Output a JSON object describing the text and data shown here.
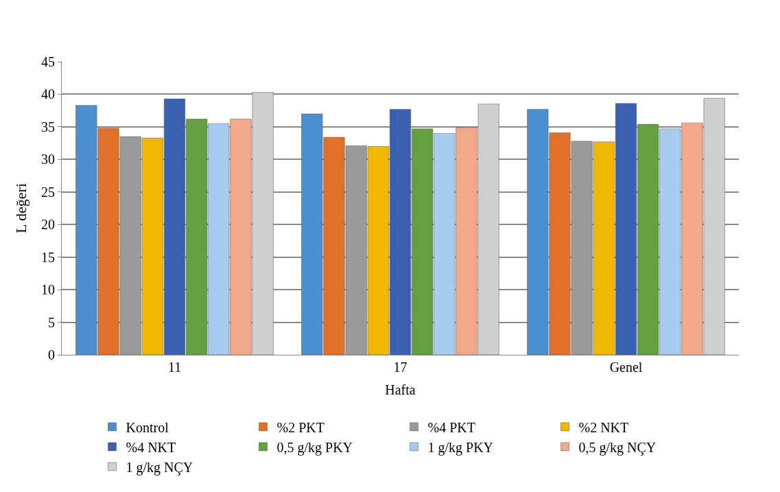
{
  "chart_data": {
    "type": "bar",
    "xlabel": "Hafta",
    "ylabel": "L değeri",
    "categories": [
      "11",
      "17",
      "Genel"
    ],
    "ylim": [
      0,
      45
    ],
    "yticks": [
      0,
      5,
      10,
      15,
      20,
      25,
      30,
      35,
      40,
      45
    ],
    "grid": "y",
    "legend": "bottom",
    "series": [
      {
        "name": "Kontrol",
        "color": "#4a90d0",
        "values": [
          38.3,
          37.0,
          37.7
        ]
      },
      {
        "name": "%2 PKT",
        "color": "#e0702a",
        "values": [
          34.8,
          33.4,
          34.1
        ]
      },
      {
        "name": "%4 PKT",
        "color": "#9a9a9a",
        "values": [
          33.5,
          32.1,
          32.8
        ]
      },
      {
        "name": "%2 NKT",
        "color": "#f0b800",
        "values": [
          33.3,
          32.0,
          32.7
        ]
      },
      {
        "name": "%4 NKT",
        "color": "#3a62b0",
        "values": [
          39.3,
          37.7,
          38.6
        ]
      },
      {
        "name": "0,5 g/kg PKY",
        "color": "#62a040",
        "values": [
          36.2,
          34.7,
          35.4
        ]
      },
      {
        "name": "1 g/kg PKY",
        "color": "#a8ccf0",
        "values": [
          35.5,
          34.0,
          34.7
        ]
      },
      {
        "name": "0,5 g/kg NÇY",
        "color": "#f4a88a",
        "values": [
          36.2,
          34.9,
          35.6
        ]
      },
      {
        "name": "1 g/kg NÇY",
        "color": "#cfcfcf",
        "values": [
          40.3,
          38.5,
          39.4
        ]
      }
    ]
  }
}
